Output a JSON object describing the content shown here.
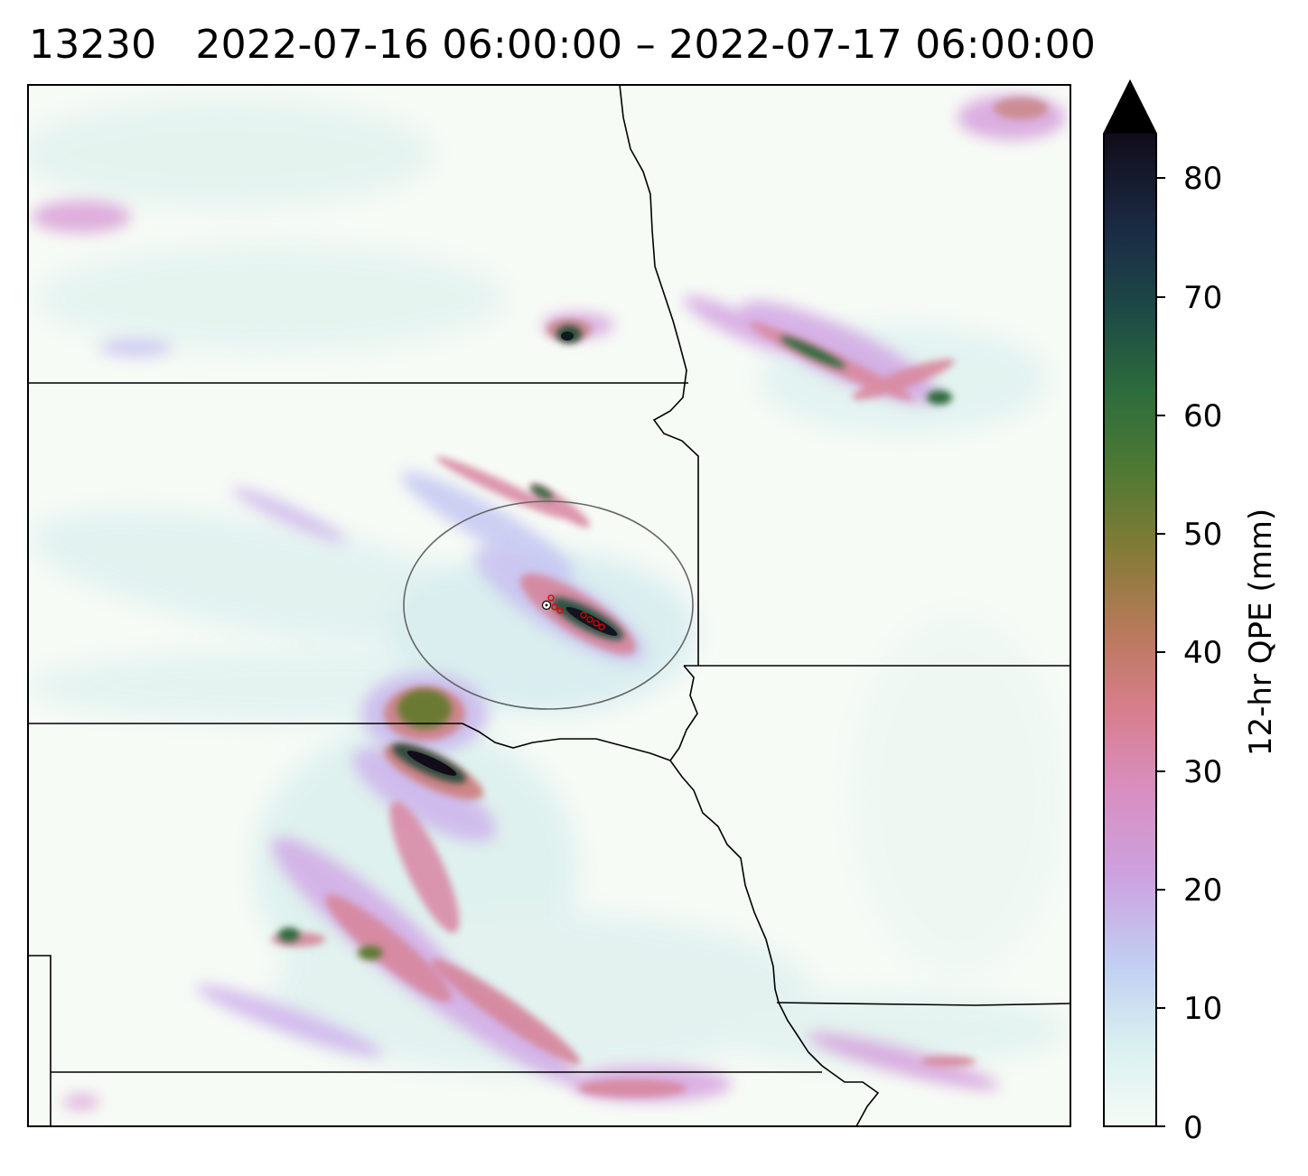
{
  "title": "13230   2022-07-16 06:00:00 – 2022-07-17 06:00:00",
  "colorbar": {
    "label": "12-hr QPE (mm)",
    "colormap": "cubehelix_r",
    "ticks": [
      "0",
      "10",
      "20",
      "30",
      "40",
      "50",
      "60",
      "70",
      "80"
    ],
    "min": 0,
    "max": 84,
    "extend": "max",
    "color_stops": [
      "#f6fbf5",
      "#d7efef",
      "#bfcaf2",
      "#d694d6",
      "#d77e8c",
      "#b7795a",
      "#847b37",
      "#5a7a31",
      "#2d6c3c",
      "#1d4a46",
      "#1b2c45",
      "#171a2e",
      "#0c0508"
    ]
  },
  "map": {
    "features": [
      "state boundaries",
      "highlight circle",
      "red station markers",
      "white center marker"
    ],
    "colors": {
      "border": "#000000",
      "circle": "#666666",
      "markers": "#e00000"
    }
  }
}
